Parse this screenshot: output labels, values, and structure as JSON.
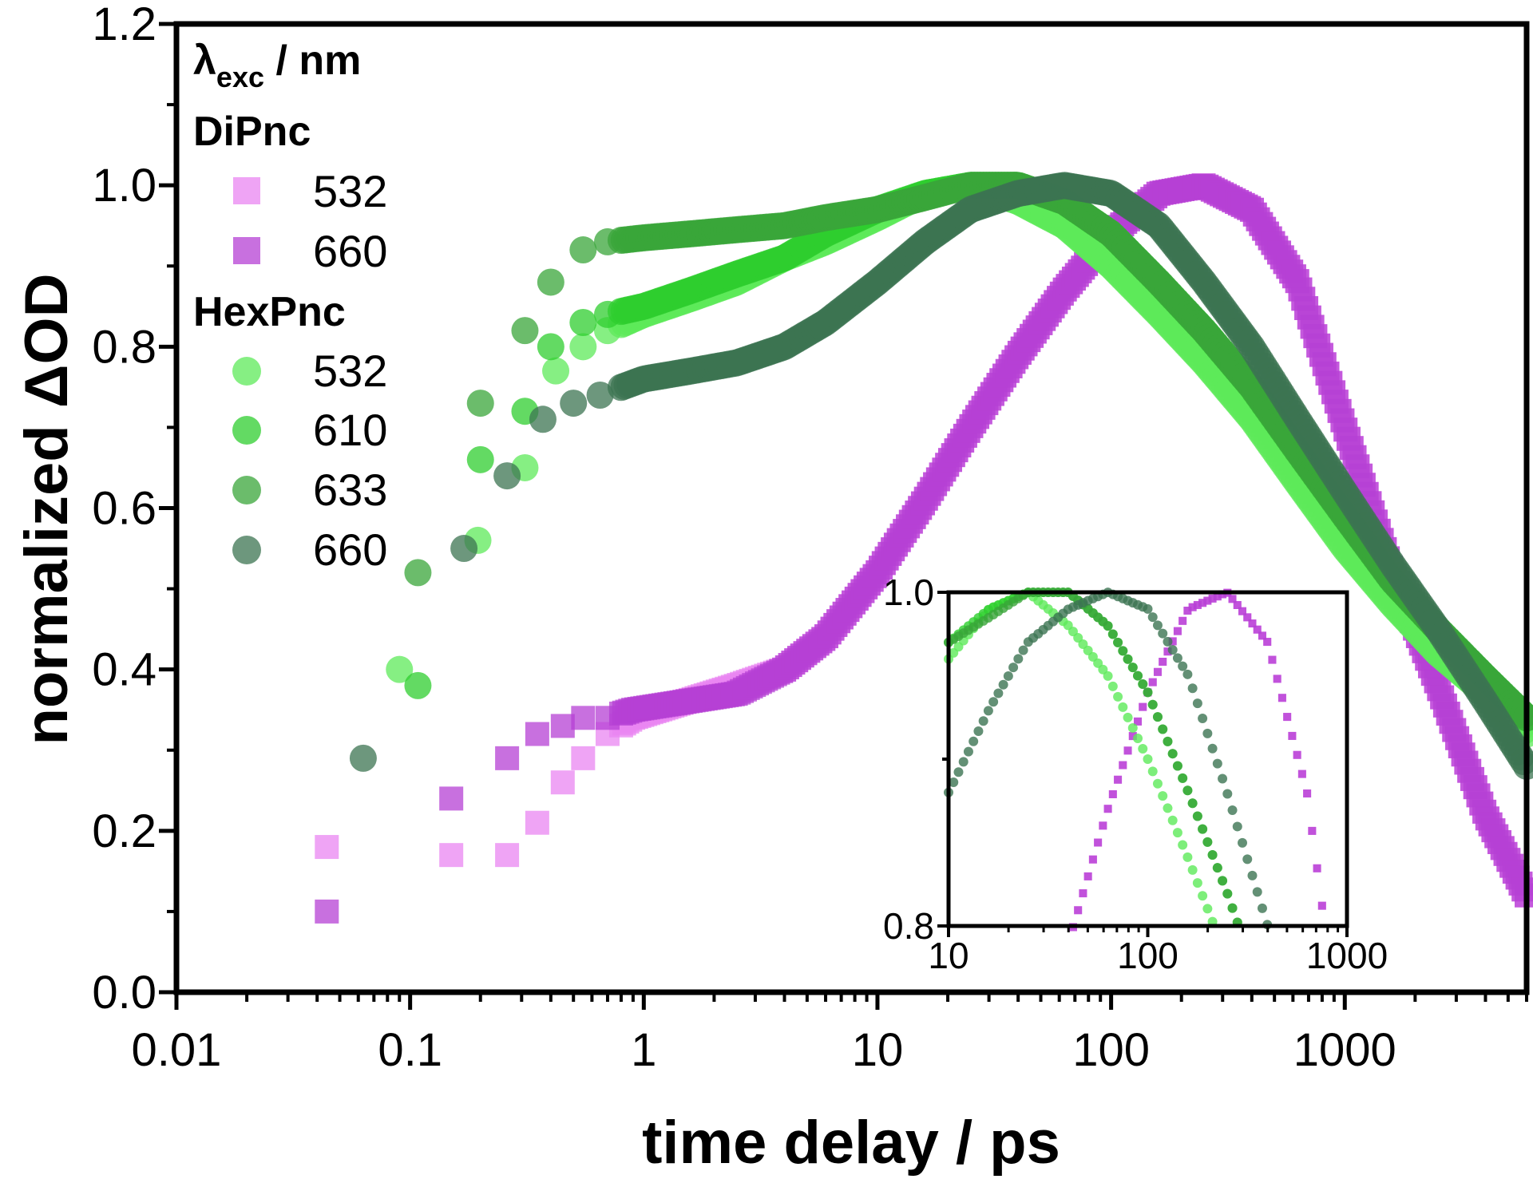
{
  "chart_data": {
    "type": "scatter",
    "title": "",
    "xlabel": "time delay / ps",
    "ylabel": "normalized ΔOD",
    "xscale": "log",
    "xlim": [
      0.01,
      6000
    ],
    "ylim": [
      0.0,
      1.2
    ],
    "xticks": [
      "0.01",
      "0.1",
      "1",
      "10",
      "100",
      "1000"
    ],
    "yticks": [
      "0.0",
      "0.2",
      "0.4",
      "0.6",
      "0.8",
      "1.0",
      "1.2"
    ],
    "legend": {
      "placement": "top-left",
      "header": {
        "symbol": "λ",
        "subscript": "exc",
        "rest": " / nm"
      },
      "groups": [
        {
          "label": "DiPnc",
          "marker": "square",
          "entries": [
            "532",
            "660"
          ]
        },
        {
          "label": "HexPnc",
          "marker": "circle",
          "entries": [
            "532",
            "610",
            "633",
            "660"
          ]
        }
      ]
    },
    "series": [
      {
        "group": "DiPnc",
        "legend_label": "532",
        "marker": "square",
        "color": "#e985f2",
        "x": [
          0.044,
          0.15,
          0.26,
          0.35,
          0.45,
          0.55,
          0.7,
          0.9,
          1.5,
          2.5,
          4,
          6,
          10,
          16,
          25,
          40,
          63,
          100,
          160,
          250,
          400,
          630,
          1000,
          1600,
          2500,
          4000,
          6000
        ],
        "y": [
          0.18,
          0.17,
          0.17,
          0.21,
          0.26,
          0.29,
          0.32,
          0.34,
          0.36,
          0.38,
          0.4,
          0.44,
          0.52,
          0.61,
          0.7,
          0.79,
          0.87,
          0.94,
          0.99,
          1.0,
          0.97,
          0.88,
          0.7,
          0.52,
          0.38,
          0.22,
          0.12
        ]
      },
      {
        "group": "DiPnc",
        "legend_label": "660",
        "marker": "square",
        "color": "#b540d4",
        "x": [
          0.044,
          0.15,
          0.26,
          0.35,
          0.45,
          0.55,
          0.7,
          0.9,
          1.5,
          2.5,
          4,
          6,
          10,
          16,
          25,
          40,
          63,
          100,
          160,
          250,
          400,
          630,
          1000,
          1600,
          2500,
          4000,
          6000
        ],
        "y": [
          0.1,
          0.24,
          0.29,
          0.32,
          0.33,
          0.34,
          0.34,
          0.35,
          0.36,
          0.37,
          0.4,
          0.44,
          0.52,
          0.61,
          0.7,
          0.79,
          0.87,
          0.94,
          0.99,
          1.0,
          0.97,
          0.88,
          0.7,
          0.52,
          0.38,
          0.22,
          0.12
        ]
      },
      {
        "group": "HexPnc",
        "legend_label": "532",
        "marker": "circle",
        "color": "#5dea59",
        "x": [
          0.09,
          0.195,
          0.31,
          0.42,
          0.55,
          0.7,
          1.0,
          1.6,
          2.5,
          4,
          6,
          10,
          16,
          25,
          40,
          63,
          100,
          160,
          250,
          400,
          630,
          1000,
          1600,
          2500,
          4000,
          6000
        ],
        "y": [
          0.4,
          0.56,
          0.65,
          0.77,
          0.8,
          0.82,
          0.84,
          0.86,
          0.88,
          0.91,
          0.93,
          0.96,
          0.99,
          1.0,
          0.98,
          0.95,
          0.9,
          0.84,
          0.78,
          0.71,
          0.63,
          0.55,
          0.48,
          0.42,
          0.37,
          0.32
        ]
      },
      {
        "group": "HexPnc",
        "legend_label": "610",
        "marker": "circle",
        "color": "#2fce2f",
        "x": [
          0.108,
          0.2,
          0.31,
          0.4,
          0.55,
          0.7,
          1.0,
          1.6,
          2.5,
          4,
          6,
          10,
          16,
          25,
          40,
          63,
          100,
          160,
          250,
          400,
          630,
          1000,
          1600,
          2500,
          4000,
          6000
        ],
        "y": [
          0.38,
          0.66,
          0.72,
          0.8,
          0.83,
          0.84,
          0.85,
          0.87,
          0.89,
          0.91,
          0.94,
          0.97,
          0.99,
          1.0,
          1.0,
          0.98,
          0.94,
          0.88,
          0.82,
          0.75,
          0.67,
          0.59,
          0.51,
          0.45,
          0.39,
          0.34
        ]
      },
      {
        "group": "HexPnc",
        "legend_label": "633",
        "marker": "circle",
        "color": "#3aa53a",
        "x": [
          0.108,
          0.2,
          0.31,
          0.4,
          0.55,
          0.7,
          1.0,
          1.6,
          2.5,
          4,
          6,
          10,
          16,
          25,
          40,
          63,
          100,
          160,
          250,
          400,
          630,
          1000,
          1600,
          2500,
          4000,
          6000
        ],
        "y": [
          0.52,
          0.73,
          0.82,
          0.88,
          0.92,
          0.93,
          0.935,
          0.94,
          0.945,
          0.95,
          0.96,
          0.97,
          0.985,
          1.0,
          1.0,
          0.98,
          0.94,
          0.88,
          0.82,
          0.75,
          0.67,
          0.59,
          0.51,
          0.45,
          0.39,
          0.34
        ]
      },
      {
        "group": "HexPnc",
        "legend_label": "660",
        "marker": "circle",
        "color": "#3c7452",
        "x": [
          0.063,
          0.17,
          0.26,
          0.37,
          0.5,
          0.65,
          1.0,
          1.6,
          2.5,
          4,
          6,
          10,
          16,
          25,
          40,
          63,
          100,
          160,
          250,
          400,
          630,
          1000,
          1600,
          2500,
          4000,
          6000
        ],
        "y": [
          0.29,
          0.55,
          0.64,
          0.71,
          0.73,
          0.74,
          0.76,
          0.77,
          0.78,
          0.8,
          0.83,
          0.88,
          0.93,
          0.97,
          0.99,
          1.0,
          0.99,
          0.95,
          0.88,
          0.8,
          0.71,
          0.62,
          0.53,
          0.45,
          0.36,
          0.28
        ]
      }
    ],
    "inset": {
      "xscale": "log",
      "xlim": [
        10,
        1000
      ],
      "ylim": [
        0.8,
        1.0
      ],
      "xticks": [
        "10",
        "100",
        "1000"
      ],
      "yticks": [
        "0.8",
        "1.0"
      ]
    }
  }
}
